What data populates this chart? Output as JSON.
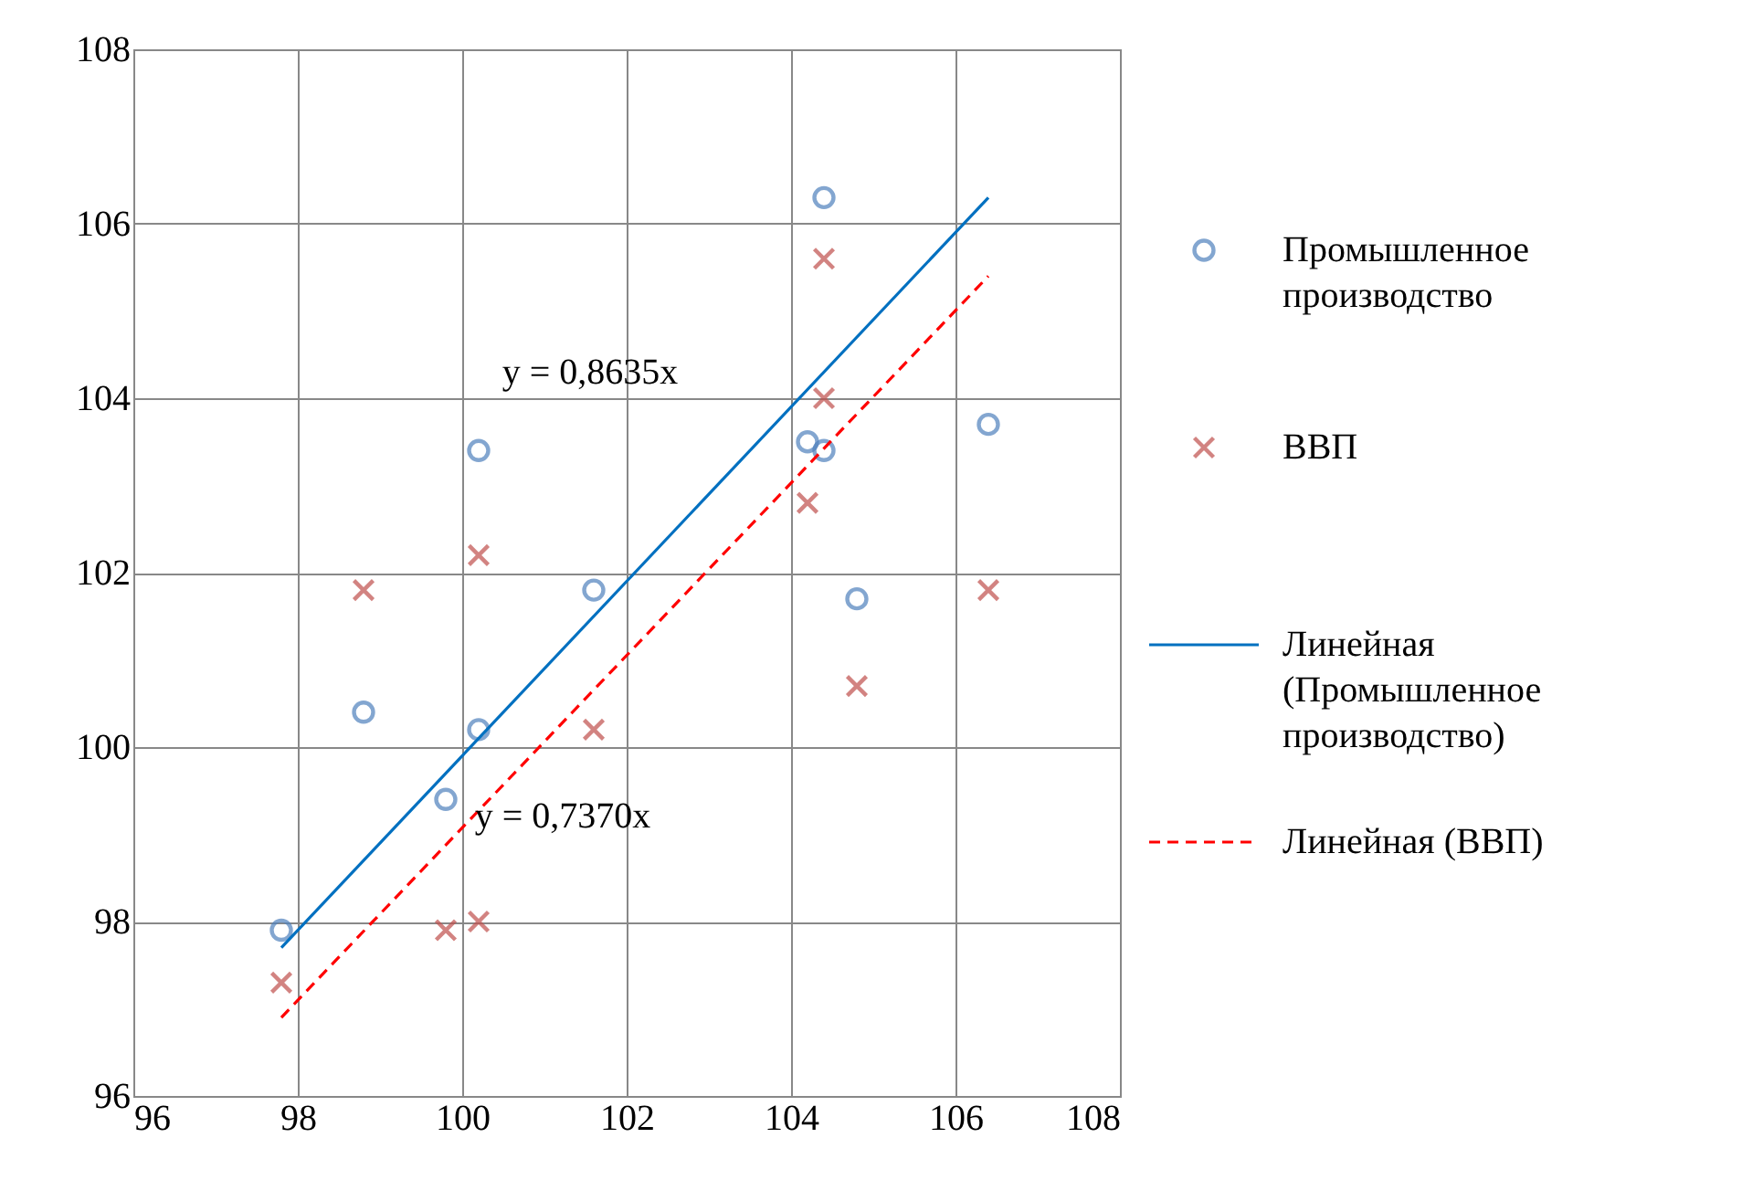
{
  "chart_data": {
    "type": "scatter",
    "xlim": [
      96,
      108
    ],
    "ylim": [
      96,
      108
    ],
    "xticks": [
      96,
      98,
      100,
      102,
      104,
      106,
      108
    ],
    "yticks": [
      96,
      98,
      100,
      102,
      104,
      106,
      108
    ],
    "grid": true,
    "legend": "right",
    "series": [
      {
        "name": "Промышленное производство",
        "marker": "circle",
        "color": "#4f81bd",
        "x": [
          97.8,
          98.8,
          99.8,
          100.2,
          100.2,
          101.6,
          104.2,
          104.4,
          104.4,
          104.8,
          106.4
        ],
        "values": [
          97.9,
          100.4,
          99.4,
          103.4,
          100.2,
          101.8,
          103.5,
          106.3,
          103.4,
          101.7,
          103.7
        ]
      },
      {
        "name": "ВВП",
        "marker": "cross",
        "color": "#c0504d",
        "x": [
          97.8,
          98.8,
          99.8,
          100.2,
          100.2,
          101.6,
          104.2,
          104.4,
          104.4,
          104.8,
          106.4
        ],
        "values": [
          97.3,
          101.8,
          97.9,
          102.2,
          98.0,
          100.2,
          102.8,
          105.6,
          104.0,
          100.7,
          101.8
        ]
      },
      {
        "name": "Линейная (Промышленное производство)",
        "type": "line",
        "line_style": "solid",
        "color": "#0070c0",
        "x": [
          97.8,
          106.4
        ],
        "values": [
          97.7,
          106.3
        ]
      },
      {
        "name": "Линейная (ВВП)",
        "type": "line",
        "line_style": "dashed",
        "color": "#ff0000",
        "x": [
          97.8,
          106.4
        ],
        "values": [
          96.9,
          105.4
        ]
      }
    ],
    "annotations": [
      "y = 0,8635x",
      "y = 0,7370x"
    ]
  }
}
